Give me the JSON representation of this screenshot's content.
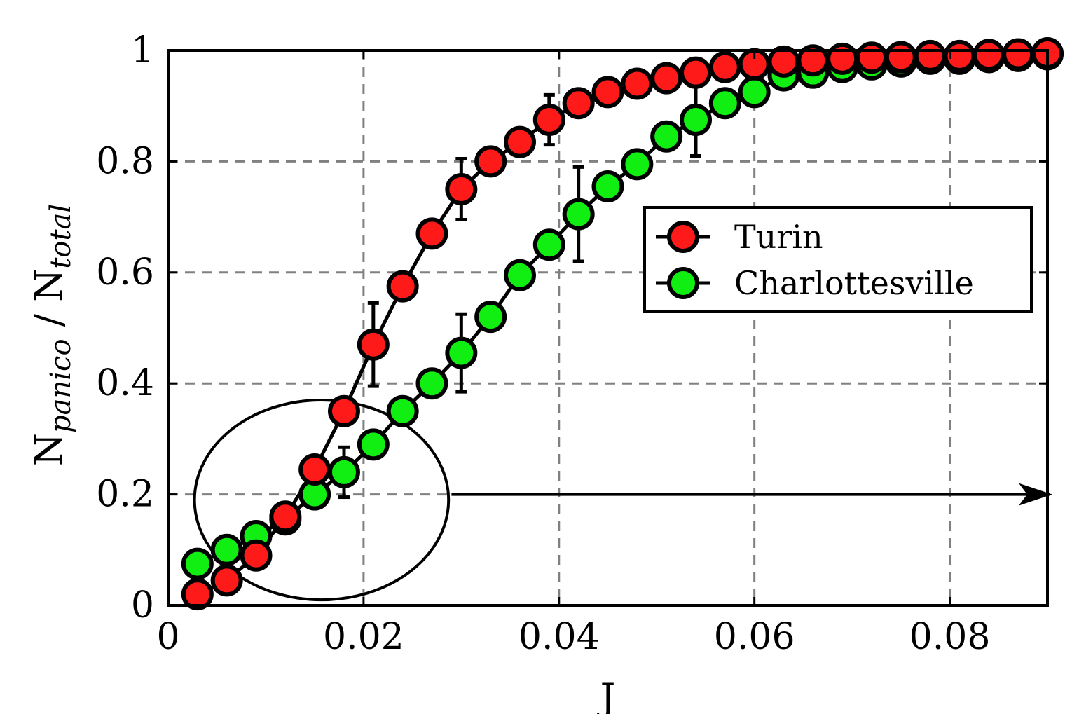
{
  "chart_data": {
    "type": "line",
    "xlabel": "J",
    "ylabel": {
      "base1": "N",
      "sub1": "panico",
      "sep": " / ",
      "base2": "N",
      "sub2": "total"
    },
    "xlim": [
      0,
      0.09
    ],
    "ylim": [
      0,
      1
    ],
    "xticks": [
      0,
      0.02,
      0.04,
      0.06,
      0.08
    ],
    "xtick_labels": [
      "0",
      "0.02",
      "0.04",
      "0.06",
      "0.08"
    ],
    "yticks": [
      0,
      0.2,
      0.4,
      0.6,
      0.8,
      1
    ],
    "ytick_labels": [
      "0",
      "0.2",
      "0.4",
      "0.6",
      "0.8",
      "1"
    ],
    "grid": true,
    "legend_position": "right",
    "series": [
      {
        "name": "Turin",
        "color": "#ff1a1a",
        "x": [
          0.003,
          0.006,
          0.009,
          0.012,
          0.015,
          0.018,
          0.021,
          0.024,
          0.027,
          0.03,
          0.033,
          0.036,
          0.039,
          0.042,
          0.045,
          0.048,
          0.051,
          0.054,
          0.057,
          0.06,
          0.063,
          0.066,
          0.069,
          0.072,
          0.075,
          0.078,
          0.081,
          0.084,
          0.087,
          0.09
        ],
        "y": [
          0.02,
          0.045,
          0.09,
          0.16,
          0.245,
          0.35,
          0.47,
          0.575,
          0.67,
          0.75,
          0.8,
          0.835,
          0.875,
          0.905,
          0.925,
          0.94,
          0.95,
          0.96,
          0.97,
          0.975,
          0.98,
          0.982,
          0.985,
          0.987,
          0.988,
          0.99,
          0.99,
          0.992,
          0.993,
          0.995
        ],
        "err": [
          0.015,
          0.01,
          0.01,
          0.01,
          0.015,
          0.02,
          0.075,
          0.015,
          0.015,
          0.055,
          0.01,
          0.01,
          0.045,
          0.01,
          0.01,
          0.015,
          0.01,
          0.01,
          0.015,
          0.01,
          0.01,
          0.01,
          0.01,
          0.01,
          0.005,
          0.005,
          0.005,
          0.005,
          0.005,
          0.005
        ]
      },
      {
        "name": "Charlottesville",
        "color": "#11ee11",
        "x": [
          0.003,
          0.006,
          0.009,
          0.012,
          0.015,
          0.018,
          0.021,
          0.024,
          0.027,
          0.03,
          0.033,
          0.036,
          0.039,
          0.042,
          0.045,
          0.048,
          0.051,
          0.054,
          0.057,
          0.06,
          0.063,
          0.066,
          0.069,
          0.072,
          0.075,
          0.078,
          0.081,
          0.084,
          0.087,
          0.09
        ],
        "y": [
          0.075,
          0.1,
          0.125,
          0.155,
          0.2,
          0.24,
          0.29,
          0.35,
          0.4,
          0.455,
          0.52,
          0.595,
          0.65,
          0.705,
          0.755,
          0.795,
          0.845,
          0.875,
          0.905,
          0.925,
          0.955,
          0.96,
          0.97,
          0.975,
          0.98,
          0.985,
          0.985,
          0.988,
          0.99,
          0.993
        ],
        "err": [
          0.01,
          0.02,
          0.01,
          0.01,
          0.01,
          0.045,
          0.01,
          0.01,
          0.01,
          0.07,
          0.01,
          0.01,
          0.01,
          0.085,
          0.01,
          0.01,
          0.01,
          0.065,
          0.01,
          0.01,
          0.01,
          0.025,
          0.01,
          0.01,
          0.005,
          0.01,
          0.005,
          0.005,
          0.005,
          0.005
        ]
      }
    ],
    "annotations": [
      {
        "type": "ellipse",
        "cx": 0.0157,
        "cy": 0.19,
        "rx": 0.013,
        "ry": 0.18
      },
      {
        "type": "arrow",
        "x1": 0.029,
        "y1": 0.2,
        "x2": 0.0905,
        "y2": 0.2
      }
    ]
  }
}
